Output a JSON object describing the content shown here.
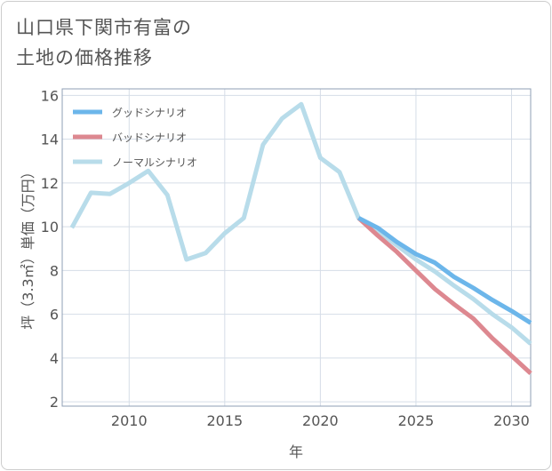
{
  "chart_data": {
    "type": "line",
    "title": "山口県下関市有富の\n土地の価格推移",
    "xlabel": "年",
    "ylabel": "坪（3.3㎡）単価（万円）",
    "xlim": [
      2006.5,
      2031
    ],
    "ylim": [
      1.8,
      16.3
    ],
    "xticks": [
      2010,
      2015,
      2020,
      2025,
      2030
    ],
    "yticks": [
      2,
      4,
      6,
      8,
      10,
      12,
      14,
      16
    ],
    "grid": true,
    "legend_position": "top-left",
    "series": [
      {
        "name": "グッドシナリオ",
        "color": "#6cb6ea",
        "x": [
          2022,
          2023,
          2024,
          2025,
          2026,
          2027,
          2028,
          2029,
          2030,
          2031
        ],
        "y": [
          10.4,
          9.95,
          9.3,
          8.75,
          8.35,
          7.7,
          7.2,
          6.65,
          6.15,
          5.6
        ]
      },
      {
        "name": "バッドシナリオ",
        "color": "#dd8890",
        "x": [
          2022,
          2023,
          2024,
          2025,
          2026,
          2027,
          2028,
          2029,
          2030,
          2031
        ],
        "y": [
          10.4,
          9.6,
          8.85,
          8.0,
          7.15,
          6.45,
          5.8,
          4.9,
          4.1,
          3.3
        ]
      },
      {
        "name": "ノーマルシナリオ",
        "color": "#b8dcea",
        "x": [
          2007,
          2008,
          2009,
          2010,
          2011,
          2012,
          2013,
          2014,
          2015,
          2016,
          2017,
          2018,
          2019,
          2020,
          2021,
          2022,
          2023,
          2024,
          2025,
          2026,
          2027,
          2028,
          2029,
          2030,
          2031
        ],
        "y": [
          9.95,
          11.55,
          11.5,
          12.0,
          12.55,
          11.45,
          8.5,
          8.8,
          9.7,
          10.4,
          13.75,
          14.95,
          15.6,
          13.15,
          12.5,
          10.4,
          9.8,
          9.15,
          8.5,
          7.95,
          7.3,
          6.7,
          6.0,
          5.4,
          4.65
        ]
      }
    ]
  }
}
